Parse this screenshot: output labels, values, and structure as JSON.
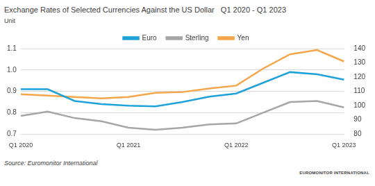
{
  "chart_data": {
    "type": "line",
    "title": "Exchange Rates of Selected Currencies Against the US Dollar   Q1 2020 - Q1 2023",
    "subtitle": "Unit",
    "categories": [
      "Q1 2020",
      null,
      null,
      null,
      "Q1 2021",
      null,
      null,
      null,
      "Q1 2022",
      null,
      null,
      null,
      "Q1 2023"
    ],
    "series": [
      {
        "name": "Euro",
        "color": "#1ea2d9",
        "values": [
          0.91,
          0.91,
          0.855,
          0.84,
          0.833,
          0.83,
          0.85,
          0.875,
          0.89,
          0.94,
          0.99,
          0.98,
          0.955
        ]
      },
      {
        "name": "Sterling",
        "color": "#a6a6a6",
        "values": [
          0.785,
          0.805,
          0.775,
          0.76,
          0.73,
          0.72,
          0.73,
          0.745,
          0.75,
          0.8,
          0.85,
          0.855,
          0.825
        ]
      },
      {
        "name": "Yen",
        "color": "#f5a54a",
        "axis": "y2",
        "values": [
          108,
          107,
          106,
          105,
          106,
          109,
          109.5,
          112,
          114,
          126,
          136,
          139,
          131
        ]
      }
    ],
    "ylim": [
      0.7,
      1.1
    ],
    "yticks": [
      0.7,
      0.8,
      0.9,
      {
        "value": 1,
        "label": "1.0"
      },
      1.1
    ],
    "y2lim": [
      80,
      140
    ],
    "y2ticks": [
      80,
      90,
      100,
      110,
      120,
      130,
      140
    ],
    "grid": true,
    "legend": "top",
    "annotations": [
      "Source: Euromonitor International",
      "EUROMONITOR INTERNATIONAL"
    ]
  }
}
